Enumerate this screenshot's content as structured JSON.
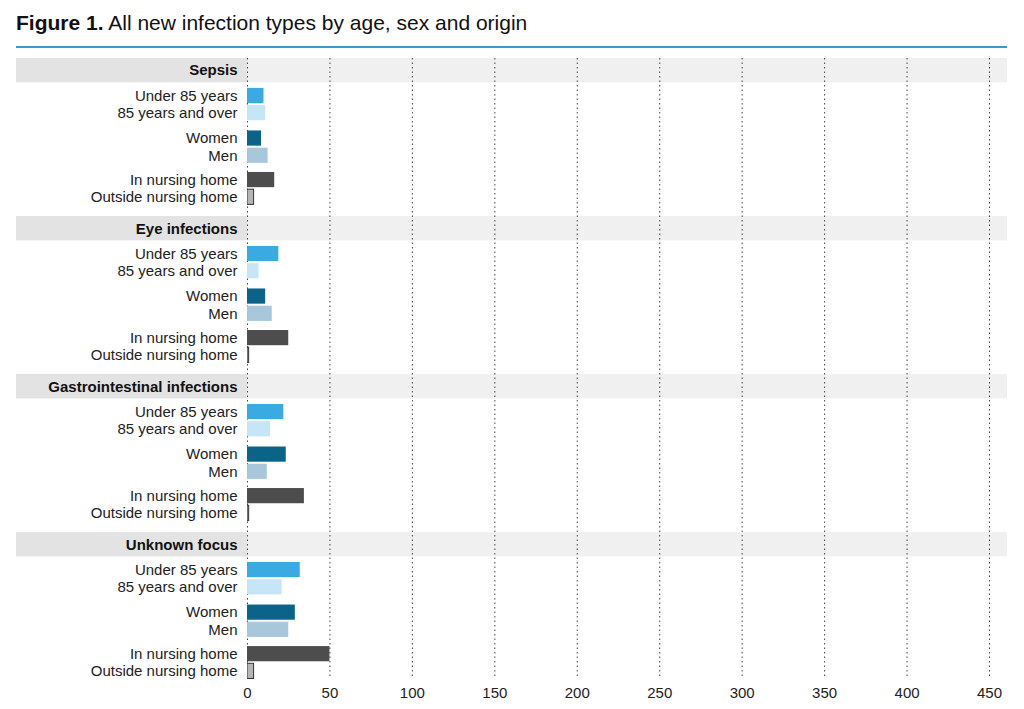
{
  "chart_data": {
    "type": "bar",
    "title": "Figure 1. All new infection types by age, sex and origin",
    "orientation": "horizontal",
    "grid": true,
    "categories": [
      "Sepsis",
      "Eye infections",
      "Gastrointestinal infections",
      "Unknown focus"
    ],
    "series": [
      {
        "name": "Under 85 years",
        "color": "#3aabe2",
        "values": [
          10,
          19,
          22,
          32
        ]
      },
      {
        "name": "85 years and over",
        "color": "#c6e6f7",
        "values": [
          11,
          7,
          14,
          21
        ]
      },
      {
        "name": "Women",
        "color": "#0b6388",
        "values": [
          8.5,
          11,
          23.5,
          29
        ]
      },
      {
        "name": "Men",
        "color": "#a8c7db",
        "values": [
          12.5,
          15,
          12,
          25
        ]
      },
      {
        "name": "In nursing home",
        "color": "#4d4d4d",
        "values": [
          16.5,
          25,
          34.5,
          50
        ]
      },
      {
        "name": "Outside nursing home",
        "color": "#b5b5b5",
        "values": [
          4,
          1,
          1,
          4
        ]
      }
    ],
    "xlim": [
      0,
      450
    ],
    "xticks": [
      0,
      50,
      100,
      150,
      200,
      250,
      300,
      350,
      400,
      450
    ]
  }
}
